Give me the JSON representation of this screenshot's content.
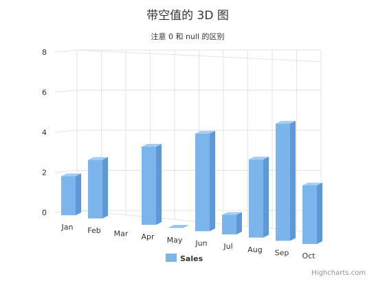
{
  "chart_data": {
    "type": "bar",
    "title": "带空值的 3D 图",
    "subtitle": "注意 0 和 null 的区别",
    "categories": [
      "Jan",
      "Feb",
      "Mar",
      "Apr",
      "May",
      "Jun",
      "Jul",
      "Aug",
      "Sep",
      "Oct"
    ],
    "series": [
      {
        "name": "Sales",
        "values": [
          2,
          3,
          null,
          4,
          0,
          5,
          1,
          4,
          6,
          3
        ],
        "color": "#7cb5ec"
      }
    ],
    "yticks": [
      0,
      2,
      4,
      6,
      8
    ],
    "ylim": [
      0,
      8
    ],
    "legend_position": "bottom-center",
    "grid": true,
    "credit": "Highcharts.com"
  }
}
